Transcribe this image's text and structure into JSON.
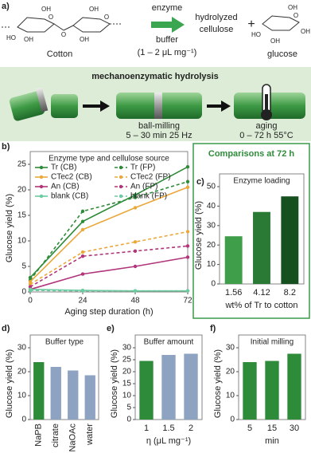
{
  "scheme": {
    "panel": "a)",
    "reactant": "Cotton",
    "reactant_labels": [
      "OH",
      "HO",
      "O",
      "OH",
      "O",
      "OH",
      "O",
      "OH"
    ],
    "reagent_top": "enzyme",
    "reagent_bottom": "buffer",
    "reagent_ratio": "(1 – 2 μL mg⁻¹)",
    "product_1": [
      "hydrolyzed",
      "cellulose"
    ],
    "plus": "+",
    "product_2": "glucose",
    "product_2_labels": [
      "OH",
      "HO",
      "O",
      "OH",
      "OH"
    ],
    "process_title": "mechanoenzymatic hydrolysis",
    "step_1": "ball-milling",
    "step_1_conditions": "5 – 30 min 25 Hz",
    "step_2": "aging",
    "step_2_conditions": "0 – 72 h 55°C"
  },
  "comparison_header": "Comparisons at 72 h",
  "chart_data": [
    {
      "type": "line",
      "panel": "b)",
      "title": "Enzyme type and cellulose source",
      "xlabel": "Aging step duration (h)",
      "ylabel": "Glucose yield (%)",
      "x": [
        0,
        24,
        48,
        72
      ],
      "xlim": [
        0,
        72
      ],
      "xticks": [
        0,
        24,
        48,
        72
      ],
      "ylim": [
        0,
        25
      ],
      "yticks": [
        0,
        5,
        10,
        15,
        20,
        25
      ],
      "series": [
        {
          "name": "Tr (CB)",
          "color": "#2e8b3a",
          "dashed": false,
          "values": [
            2.8,
            13.8,
            19,
            24.5
          ]
        },
        {
          "name": "Tr (FP)",
          "color": "#2e8b3a",
          "dashed": true,
          "values": [
            2.3,
            15.8,
            18.5,
            21.6
          ]
        },
        {
          "name": "CTec2 (CB)",
          "color": "#eaa83c",
          "dashed": false,
          "values": [
            2,
            12.2,
            16.5,
            20.5
          ]
        },
        {
          "name": "CTec2 (FP)",
          "color": "#eaa83c",
          "dashed": true,
          "values": [
            1.5,
            7.8,
            9.8,
            11.8
          ]
        },
        {
          "name": "An (CB)",
          "color": "#b0357a",
          "dashed": false,
          "values": [
            0.5,
            3.5,
            5,
            6.8
          ]
        },
        {
          "name": "An (FP)",
          "color": "#b0357a",
          "dashed": true,
          "values": [
            1,
            7,
            8,
            9
          ]
        },
        {
          "name": "blank (CB)",
          "color": "#6ccaa0",
          "dashed": false,
          "values": [
            0.5,
            0.3,
            0.2,
            0.2
          ]
        },
        {
          "name": "blank (FP)",
          "color": "#6ccaa0",
          "dashed": true,
          "values": [
            0.3,
            0.2,
            0.2,
            0.2
          ]
        }
      ]
    },
    {
      "type": "bar",
      "panel": "c)",
      "title": "Enzyme loading",
      "xlabel": "wt% of Tr to cotton",
      "ylabel": "Glucose yield (%)",
      "categories": [
        "1.56",
        "4.12",
        "8.2"
      ],
      "values": [
        24.5,
        37,
        45
      ],
      "colors": [
        "#3f9e4a",
        "#2a7a35",
        "#17501f"
      ],
      "ylim": [
        0,
        50
      ],
      "yticks": [
        0,
        10,
        20,
        30,
        40,
        50
      ]
    },
    {
      "type": "bar",
      "panel": "d)",
      "title": "Buffer type",
      "ylabel": "Glucose yield (%)",
      "categories": [
        "NaPB",
        "citrate",
        "NaOAc",
        "water"
      ],
      "values": [
        24,
        22,
        20.5,
        18.5
      ],
      "colors": [
        "#2e8b3a",
        "#8ea3c2",
        "#8ea3c2",
        "#8ea3c2"
      ],
      "ylim": [
        0,
        30
      ],
      "yticks": [
        0,
        10,
        20,
        30
      ]
    },
    {
      "type": "bar",
      "panel": "e)",
      "title": "Buffer amount",
      "xlabel": "η (μL mg⁻¹)",
      "ylabel": "Glucose yield (%)",
      "categories": [
        "1",
        "1.5",
        "2"
      ],
      "values": [
        24.5,
        27,
        27.5
      ],
      "colors": [
        "#2e8b3a",
        "#8ea3c2",
        "#8ea3c2"
      ],
      "ylim": [
        0,
        30
      ],
      "yticks": [
        0,
        5,
        10,
        15,
        20,
        25,
        30
      ]
    },
    {
      "type": "bar",
      "panel": "f)",
      "title": "Initial milling",
      "xlabel": "min",
      "ylabel": "Glucose yield (%)",
      "categories": [
        "5",
        "15",
        "30"
      ],
      "values": [
        24,
        24.5,
        27.5
      ],
      "colors": [
        "#2e8b3a",
        "#2e8b3a",
        "#2e8b3a"
      ],
      "ylim": [
        0,
        30
      ],
      "yticks": [
        0,
        10,
        20,
        30
      ]
    }
  ]
}
